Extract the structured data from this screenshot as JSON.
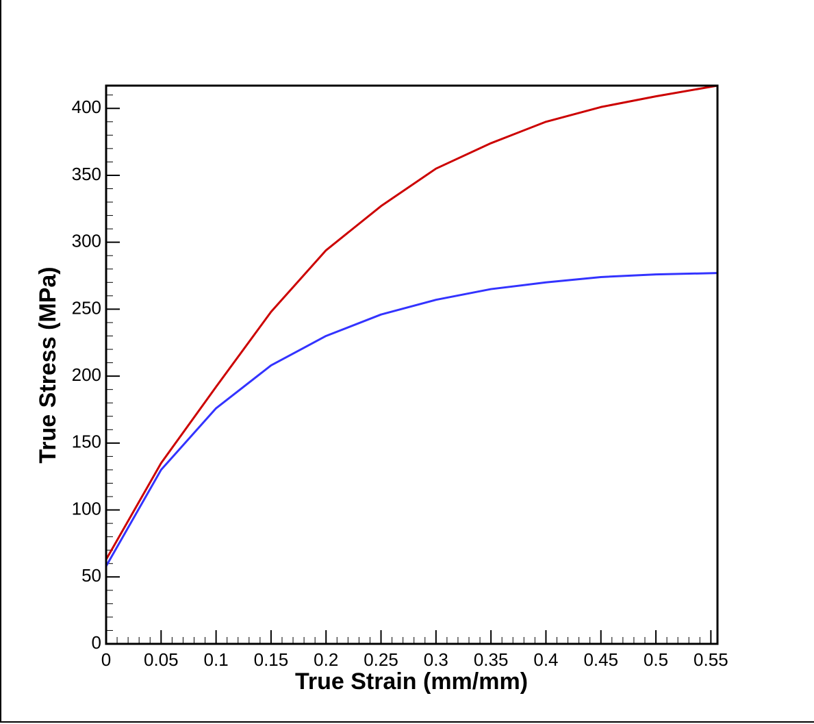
{
  "chart_data": {
    "type": "line",
    "xlabel": "True Strain (mm/mm)",
    "ylabel": "True Stress (MPa)",
    "x": [
      0,
      0.05,
      0.1,
      0.15,
      0.2,
      0.25,
      0.3,
      0.35,
      0.4,
      0.45,
      0.5,
      0.556
    ],
    "series": [
      {
        "color": "#cc0000",
        "values": [
          63,
          135,
          192,
          248,
          294,
          327,
          355,
          374,
          390,
          401,
          409,
          417
        ]
      },
      {
        "color": "#3333ff",
        "values": [
          58,
          130,
          176,
          208,
          230,
          246,
          257,
          265,
          270,
          274,
          276,
          277
        ]
      }
    ],
    "xlim": [
      0,
      0.556
    ],
    "ylim": [
      0,
      417
    ],
    "xticks": [
      0,
      0.05,
      0.1,
      0.15,
      0.2,
      0.25,
      0.3,
      0.35,
      0.4,
      0.45,
      0.5,
      0.55
    ],
    "yticks": [
      0,
      50,
      100,
      150,
      200,
      250,
      300,
      350,
      400
    ],
    "xminorticks": [
      0.01,
      0.02,
      0.03,
      0.04,
      0.06,
      0.07,
      0.08,
      0.09,
      0.11,
      0.12,
      0.13,
      0.14,
      0.16,
      0.17,
      0.18,
      0.19,
      0.21,
      0.22,
      0.23,
      0.24,
      0.26,
      0.27,
      0.28,
      0.29,
      0.31,
      0.32,
      0.33,
      0.34,
      0.36,
      0.37,
      0.38,
      0.39,
      0.41,
      0.42,
      0.43,
      0.44,
      0.46,
      0.47,
      0.48,
      0.49,
      0.51,
      0.52,
      0.53,
      0.54
    ],
    "yminorticks": [
      10,
      20,
      30,
      40,
      60,
      70,
      80,
      90,
      110,
      120,
      130,
      140,
      160,
      170,
      180,
      190,
      210,
      220,
      230,
      240,
      260,
      270,
      280,
      290,
      310,
      320,
      330,
      340,
      360,
      370,
      380,
      390,
      410
    ],
    "grid": false
  }
}
